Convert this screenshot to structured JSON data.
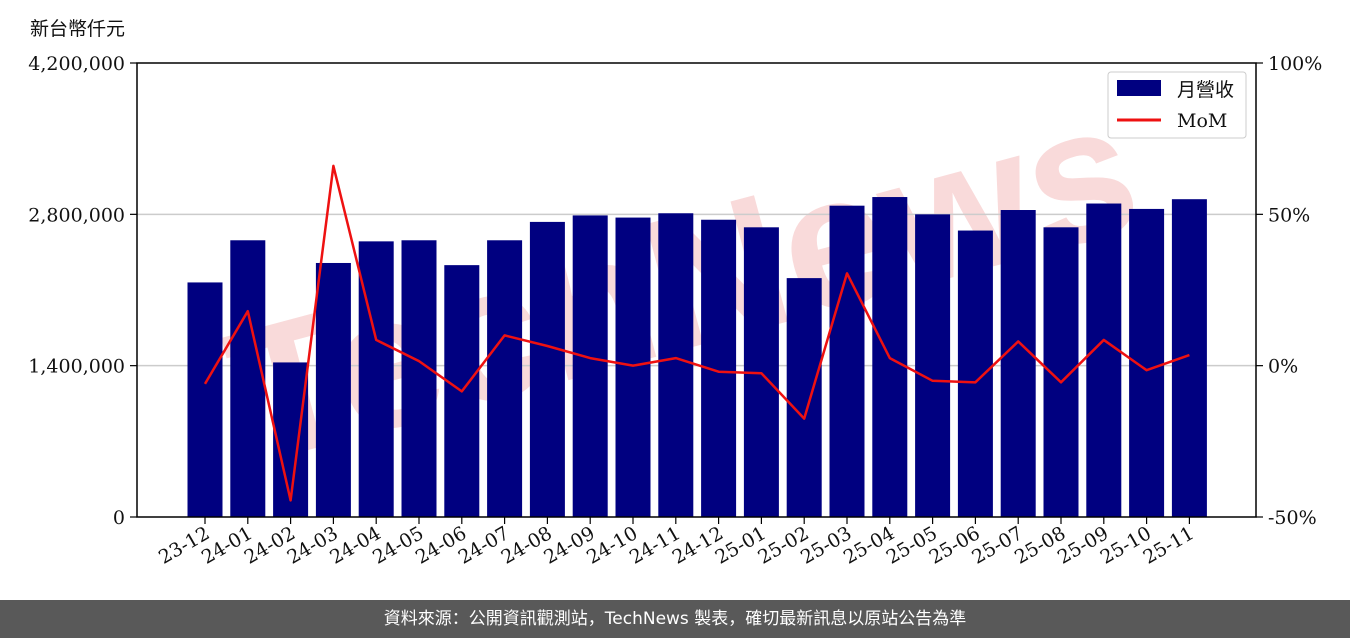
{
  "unit_label": "新台幣仟元",
  "watermark": "TechNews",
  "footer": "資料來源：公開資訊觀測站，TechNews 製表，確切最新訊息以原站公告為準",
  "colors": {
    "bar": "#000080",
    "line": "#ee1111",
    "grid": "#cccccc",
    "watermark": "#f9dada"
  },
  "chart_data": {
    "type": "bar",
    "categories": [
      "23-12",
      "24-01",
      "24-02",
      "24-03",
      "24-04",
      "24-05",
      "24-06",
      "24-07",
      "24-08",
      "24-09",
      "24-10",
      "24-11",
      "24-12",
      "25-01",
      "25-02",
      "25-03",
      "25-04",
      "25-05",
      "25-06",
      "25-07",
      "25-08",
      "25-09",
      "25-10",
      "25-11"
    ],
    "series": [
      {
        "name": "月營收",
        "type": "bar",
        "axis": "left",
        "values": [
          2170000,
          2560000,
          1430000,
          2350000,
          2550000,
          2560000,
          2330000,
          2560000,
          2730000,
          2790000,
          2770000,
          2810000,
          2750000,
          2680000,
          2210000,
          2880000,
          2960000,
          2800000,
          2650000,
          2840000,
          2680000,
          2900000,
          2850000,
          2940000
        ]
      },
      {
        "name": "MoM",
        "type": "line",
        "axis": "right",
        "values": [
          -6,
          18,
          -44.5,
          66,
          8.5,
          1.5,
          -8.5,
          10,
          6.5,
          2.5,
          0,
          2.5,
          -2,
          -2.5,
          -17.5,
          30.5,
          2.5,
          -5,
          -5.5,
          8,
          -5.5,
          8.5,
          -1.5,
          3.5
        ]
      }
    ],
    "y_left": {
      "lim": [
        0,
        4200000
      ],
      "ticks": [
        "0",
        "1,400,000",
        "2,800,000",
        "4,200,000"
      ],
      "tick_values": [
        0,
        1400000,
        2800000,
        4200000
      ]
    },
    "y_right": {
      "lim": [
        -50,
        100
      ],
      "ticks": [
        "-50%",
        "0%",
        "50%",
        "100%"
      ],
      "tick_values": [
        -50,
        0,
        50,
        100
      ]
    },
    "grid": true,
    "legend_position": "top-right"
  }
}
